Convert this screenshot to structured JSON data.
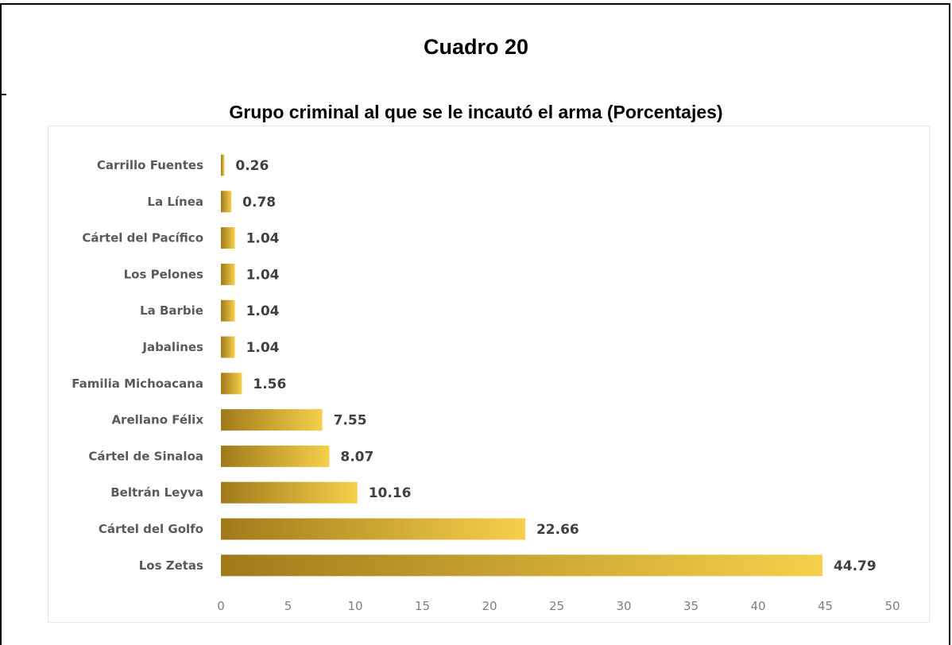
{
  "caption": "Cuadro 20",
  "chart_data": {
    "type": "bar",
    "orientation": "horizontal",
    "title": "Grupo criminal al que se le incautó el arma (Porcentajes)",
    "categories": [
      "Carrillo Fuentes",
      "La Línea",
      "Cártel del Pacífico",
      "Los Pelones",
      "La Barbie",
      "Jabalines",
      "Familia Michoacana",
      "Arellano Félix",
      "Cártel de Sinaloa",
      "Beltrán Leyva",
      "Cártel del Golfo",
      "Los Zetas"
    ],
    "values": [
      0.26,
      0.78,
      1.04,
      1.04,
      1.04,
      1.04,
      1.56,
      7.55,
      8.07,
      10.16,
      22.66,
      44.79
    ],
    "value_labels": [
      "0.26",
      "0.78",
      "1.04",
      "1.04",
      "1.04",
      "1.04",
      "1.56",
      "7.55",
      "8.07",
      "10.16",
      "22.66",
      "44.79"
    ],
    "xlim": [
      0,
      50
    ],
    "xticks": [
      0,
      5,
      10,
      15,
      20,
      25,
      30,
      35,
      40,
      45,
      50
    ],
    "grid": false,
    "legend": "none",
    "bar_gradient": [
      "#a07a1a",
      "#f5d04a"
    ]
  }
}
